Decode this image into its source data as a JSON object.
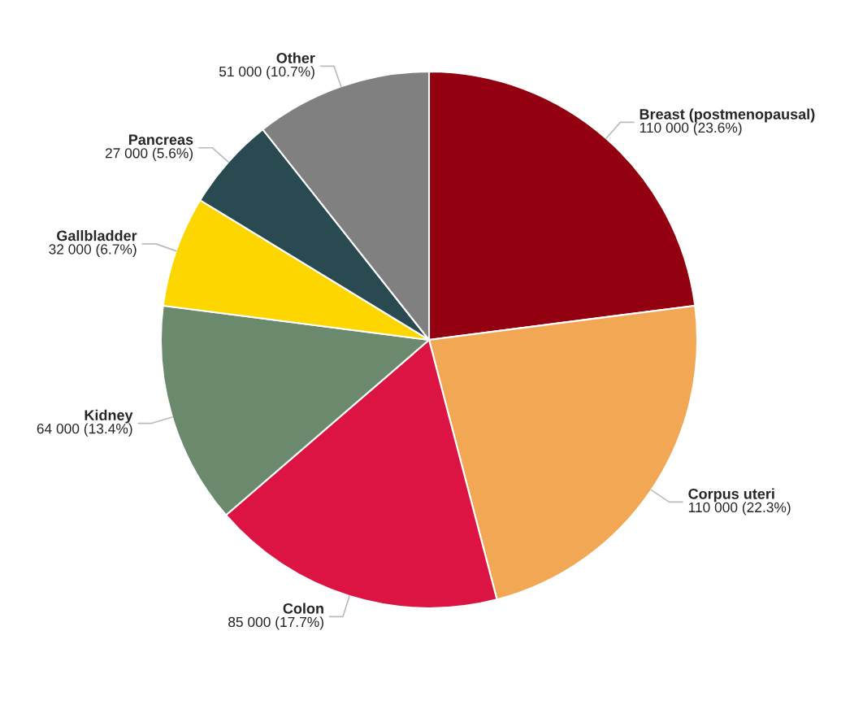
{
  "chart_data": {
    "type": "pie",
    "categories": [
      "Breast (postmenopausal)",
      "Corpus uteri",
      "Colon",
      "Kidney",
      "Gallbladder",
      "Pancreas",
      "Other"
    ],
    "values": [
      110000,
      110000,
      85000,
      64000,
      32000,
      27000,
      51000
    ],
    "value_labels": [
      "110 000 (23.6%)",
      "110 000 (22.3%)",
      "85 000 (17.7%)",
      "64 000 (13.4%)",
      "32 000 (6.7%)",
      "27 000 (5.6%)",
      "51 000 (10.7%)"
    ],
    "colors": [
      "#930010",
      "#f2a755",
      "#dc1443",
      "#6b8a6d",
      "#fdd600",
      "#2a4a52",
      "#808080"
    ]
  }
}
